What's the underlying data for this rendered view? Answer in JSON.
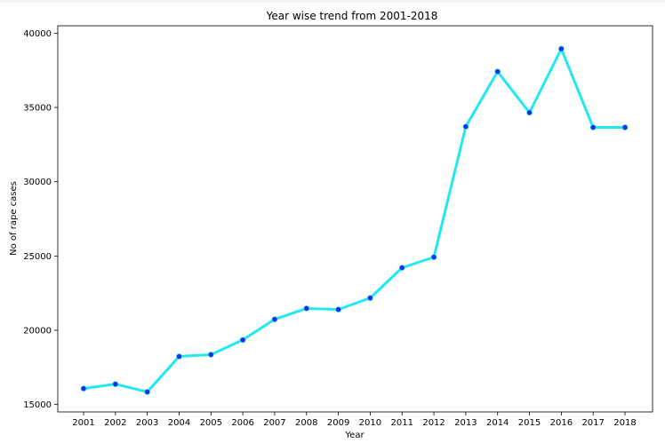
{
  "chart_data": {
    "type": "line",
    "title": "Year wise trend from 2001-2018",
    "xlabel": "Year",
    "ylabel": "No of rape cases",
    "categories": [
      "2001",
      "2002",
      "2003",
      "2004",
      "2005",
      "2006",
      "2007",
      "2008",
      "2009",
      "2010",
      "2011",
      "2012",
      "2013",
      "2014",
      "2015",
      "2016",
      "2017",
      "2018"
    ],
    "series": [
      {
        "values": [
          16075,
          16373,
          15847,
          18233,
          18359,
          19348,
          20737,
          21467,
          21397,
          22172,
          24206,
          24923,
          33707,
          37413,
          34651,
          38947,
          33658,
          33656
        ],
        "line_color": "#22e8f0",
        "marker_color": "#1a2ee6"
      }
    ],
    "yticks": [
      15000,
      20000,
      25000,
      30000,
      35000,
      40000
    ],
    "ylim": [
      14500,
      40500
    ],
    "grid": false,
    "legend": "none"
  }
}
